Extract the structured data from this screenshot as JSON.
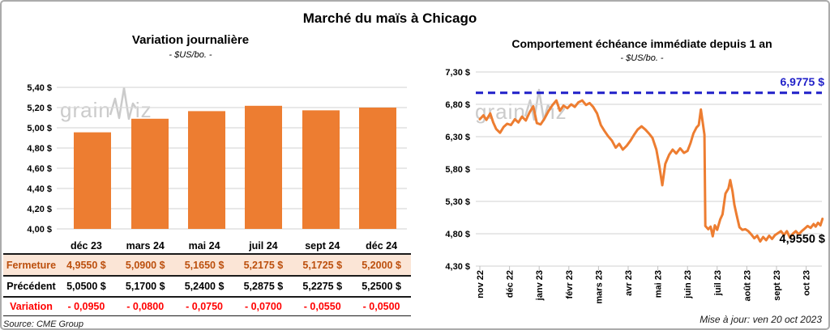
{
  "page": {
    "title": "Marché du maïs à Chicago",
    "source": "Source: CME Group",
    "updated": "Mise à jour: ven 20 oct 2023",
    "watermark_part1": "grain",
    "watermark_part2": "iz"
  },
  "colors": {
    "accent_orange": "#ed7d31",
    "close_row_bg": "#fbe5d6",
    "close_row_text": "#bc4f0d",
    "variation_red": "#ff0000",
    "ref_blue": "#1f1fc8",
    "gridline": "#d9d9d9",
    "tick_gray": "#bfbfbf",
    "watermark_gray": "#cbcbcb"
  },
  "chart_data": [
    {
      "type": "bar",
      "title": "Variation journalière",
      "subtitle": "- $US/bo. -",
      "categories": [
        "déc 23",
        "mars 24",
        "mai 24",
        "juil 24",
        "sept 24",
        "déc 24"
      ],
      "values": [
        4.955,
        5.09,
        5.165,
        5.2175,
        5.1725,
        5.2
      ],
      "ylim": [
        4.0,
        5.4
      ],
      "ytick_labels": [
        "5,40 $",
        "5,20 $",
        "5,00 $",
        "4,80 $",
        "4,60 $",
        "4,40 $",
        "4,20 $",
        "4,00 $"
      ],
      "grid": true,
      "legend": "none"
    },
    {
      "type": "line",
      "title": "Comportement échéance immédiate depuis 1 an",
      "subtitle": "- $US/bo. -",
      "x_labels": [
        "nov 22",
        "déc 22",
        "janv 23",
        "févr 23",
        "mars 23",
        "avr 23",
        "mai 23",
        "juin 23",
        "juil 23",
        "août 23",
        "sept 23",
        "oct 23"
      ],
      "x_note": "series x = months after the nov 22 tick",
      "ylim": [
        4.3,
        7.3
      ],
      "ytick_labels": [
        "7,30 $",
        "6,80 $",
        "6,30 $",
        "5,80 $",
        "5,30 $",
        "4,80 $",
        "4,30 $"
      ],
      "grid": true,
      "legend": "none",
      "reference_line": {
        "value": 6.9775,
        "label": "6,9775 $"
      },
      "end_label": "4,9550 $",
      "last_value": 4.955,
      "series": [
        [
          0.0,
          6.57
        ],
        [
          0.12,
          6.63
        ],
        [
          0.22,
          6.56
        ],
        [
          0.35,
          6.66
        ],
        [
          0.45,
          6.52
        ],
        [
          0.55,
          6.42
        ],
        [
          0.68,
          6.36
        ],
        [
          0.8,
          6.45
        ],
        [
          0.92,
          6.5
        ],
        [
          1.05,
          6.48
        ],
        [
          1.18,
          6.57
        ],
        [
          1.3,
          6.52
        ],
        [
          1.42,
          6.61
        ],
        [
          1.55,
          6.55
        ],
        [
          1.68,
          6.68
        ],
        [
          1.8,
          6.77
        ],
        [
          1.92,
          6.51
        ],
        [
          2.05,
          6.49
        ],
        [
          2.18,
          6.58
        ],
        [
          2.32,
          6.7
        ],
        [
          2.45,
          6.79
        ],
        [
          2.58,
          6.86
        ],
        [
          2.7,
          6.7
        ],
        [
          2.82,
          6.78
        ],
        [
          2.95,
          6.74
        ],
        [
          3.08,
          6.8
        ],
        [
          3.2,
          6.76
        ],
        [
          3.32,
          6.83
        ],
        [
          3.45,
          6.86
        ],
        [
          3.58,
          6.79
        ],
        [
          3.7,
          6.82
        ],
        [
          3.82,
          6.76
        ],
        [
          3.95,
          6.66
        ],
        [
          4.08,
          6.48
        ],
        [
          4.2,
          6.39
        ],
        [
          4.32,
          6.31
        ],
        [
          4.45,
          6.24
        ],
        [
          4.58,
          6.13
        ],
        [
          4.7,
          6.19
        ],
        [
          4.82,
          6.1
        ],
        [
          4.95,
          6.16
        ],
        [
          5.08,
          6.24
        ],
        [
          5.2,
          6.33
        ],
        [
          5.32,
          6.41
        ],
        [
          5.45,
          6.46
        ],
        [
          5.58,
          6.41
        ],
        [
          5.7,
          6.35
        ],
        [
          5.82,
          6.28
        ],
        [
          5.95,
          6.1
        ],
        [
          6.05,
          5.85
        ],
        [
          6.15,
          5.55
        ],
        [
          6.25,
          5.88
        ],
        [
          6.38,
          6.02
        ],
        [
          6.5,
          6.1
        ],
        [
          6.62,
          6.04
        ],
        [
          6.75,
          6.12
        ],
        [
          6.88,
          6.05
        ],
        [
          7.0,
          6.08
        ],
        [
          7.1,
          6.2
        ],
        [
          7.2,
          6.35
        ],
        [
          7.3,
          6.44
        ],
        [
          7.38,
          6.48
        ],
        [
          7.45,
          6.72
        ],
        [
          7.52,
          6.5
        ],
        [
          7.57,
          6.33
        ],
        [
          7.6,
          4.92
        ],
        [
          7.7,
          4.87
        ],
        [
          7.78,
          4.91
        ],
        [
          7.85,
          4.76
        ],
        [
          7.92,
          4.93
        ],
        [
          8.0,
          4.86
        ],
        [
          8.1,
          5.02
        ],
        [
          8.18,
          5.1
        ],
        [
          8.28,
          5.42
        ],
        [
          8.38,
          5.5
        ],
        [
          8.44,
          5.63
        ],
        [
          8.52,
          5.45
        ],
        [
          8.58,
          5.25
        ],
        [
          8.65,
          5.1
        ],
        [
          8.75,
          4.9
        ],
        [
          8.85,
          4.86
        ],
        [
          8.95,
          4.87
        ],
        [
          9.05,
          4.84
        ],
        [
          9.15,
          4.79
        ],
        [
          9.25,
          4.73
        ],
        [
          9.35,
          4.77
        ],
        [
          9.45,
          4.68
        ],
        [
          9.55,
          4.75
        ],
        [
          9.65,
          4.7
        ],
        [
          9.75,
          4.77
        ],
        [
          9.85,
          4.72
        ],
        [
          9.95,
          4.78
        ],
        [
          10.05,
          4.81
        ],
        [
          10.15,
          4.84
        ],
        [
          10.25,
          4.78
        ],
        [
          10.35,
          4.84
        ],
        [
          10.45,
          4.74
        ],
        [
          10.55,
          4.8
        ],
        [
          10.65,
          4.84
        ],
        [
          10.75,
          4.79
        ],
        [
          10.85,
          4.84
        ],
        [
          10.95,
          4.88
        ],
        [
          11.05,
          4.92
        ],
        [
          11.15,
          4.89
        ],
        [
          11.25,
          4.95
        ],
        [
          11.32,
          4.91
        ],
        [
          11.4,
          4.97
        ],
        [
          11.48,
          4.93
        ],
        [
          11.55,
          5.03
        ]
      ]
    }
  ],
  "table": {
    "header": [
      "déc 23",
      "mars 24",
      "mai 24",
      "juil 24",
      "sept 24",
      "déc 24"
    ],
    "rows": [
      {
        "label": "Fermeture",
        "style": "close",
        "values": [
          "4,9550 $",
          "5,0900 $",
          "5,1650 $",
          "5,2175 $",
          "5,1725 $",
          "5,2000 $"
        ]
      },
      {
        "label": "Précédent",
        "style": "prev",
        "values": [
          "5,0500 $",
          "5,1700 $",
          "5,2400 $",
          "5,2875 $",
          "5,2275 $",
          "5,2500 $"
        ]
      },
      {
        "label": "Variation",
        "style": "var",
        "values": [
          "- 0,0950",
          "- 0,0800",
          "- 0,0750",
          "- 0,0700",
          "- 0,0550",
          "- 0,0500"
        ]
      }
    ]
  }
}
